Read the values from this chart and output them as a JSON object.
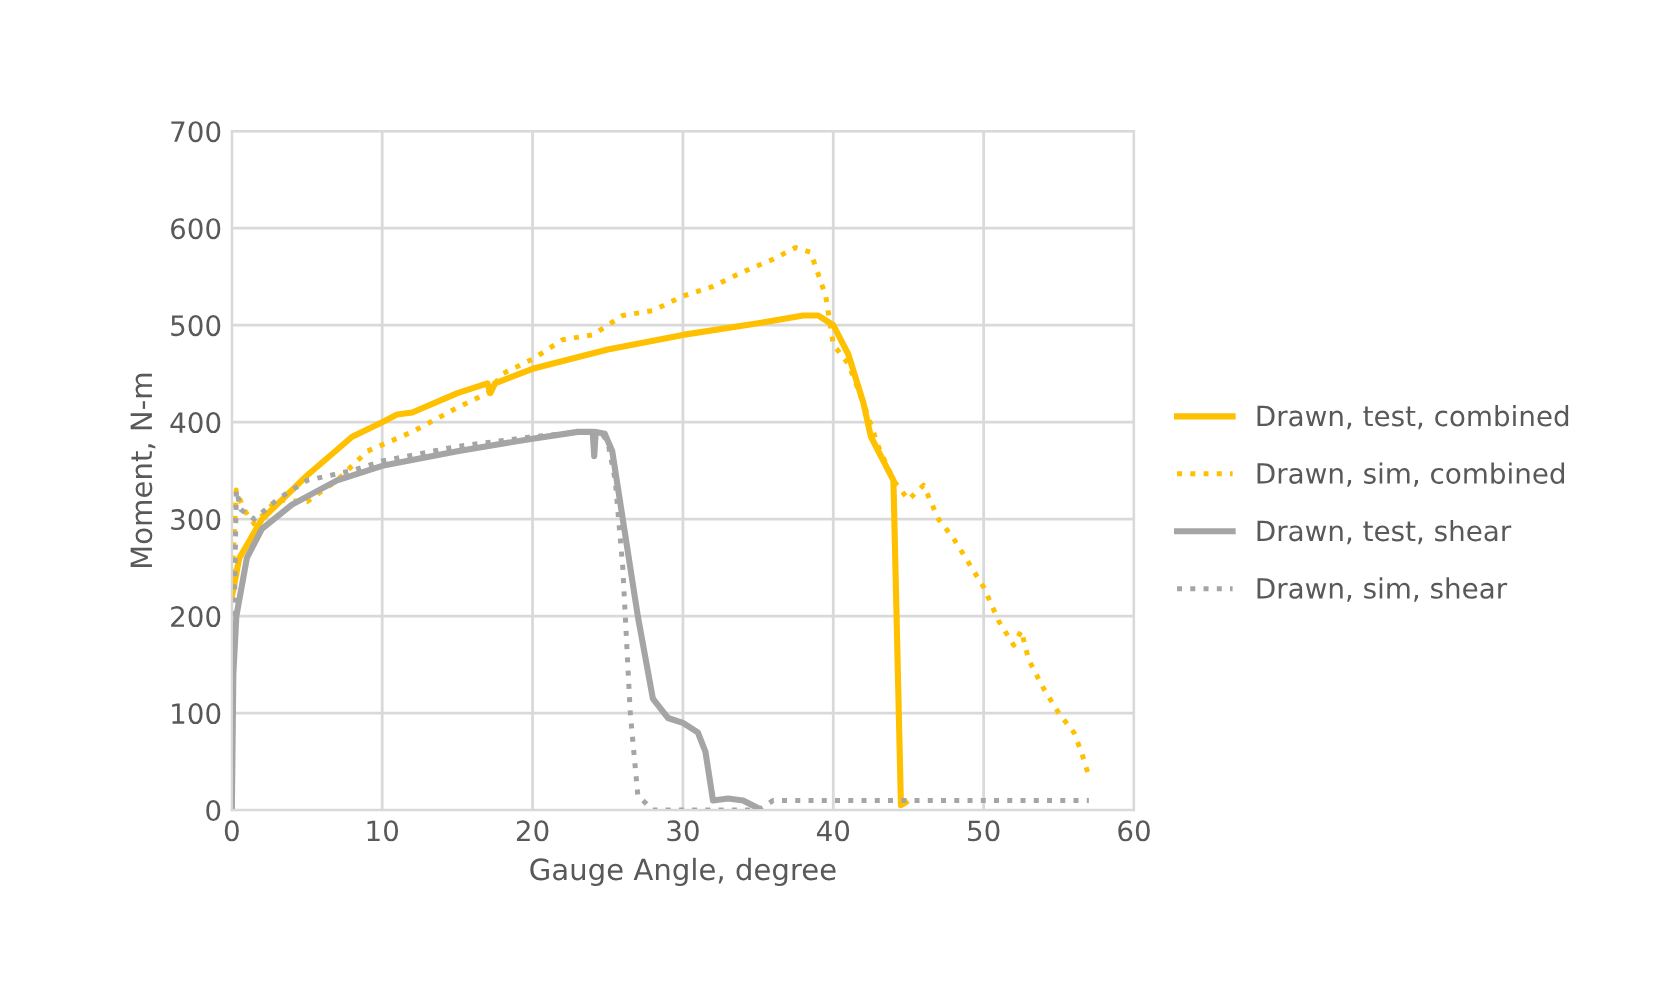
{
  "chart_data": {
    "type": "line",
    "xlabel": "Gauge Angle, degree",
    "ylabel": "Moment, N-m",
    "xlim": [
      0,
      60
    ],
    "xticks": [
      0,
      10,
      20,
      30,
      40,
      50,
      60
    ],
    "ylim": [
      0,
      700
    ],
    "yticks": [
      0,
      100,
      200,
      300,
      400,
      500,
      600,
      700
    ],
    "grid": true,
    "legend": "right",
    "marker": "none",
    "series": [
      {
        "name": "Drawn, test, combined",
        "color": "#ffc000",
        "line_style": "solid",
        "x": [
          0,
          0.5,
          2,
          5,
          8,
          10,
          11,
          12,
          15,
          17,
          17.2,
          17.5,
          20,
          25,
          30,
          35,
          38,
          39,
          40,
          41,
          42,
          42.5,
          43,
          44,
          44.5,
          44.8
        ],
        "values": [
          220,
          260,
          300,
          345,
          385,
          400,
          408,
          410,
          430,
          440,
          430,
          440,
          455,
          475,
          490,
          502,
          510,
          510,
          500,
          470,
          420,
          385,
          370,
          340,
          5,
          8
        ]
      },
      {
        "name": "Drawn, sim, combined",
        "color": "#ffc000",
        "line_style": "dotted",
        "x": [
          0,
          0.3,
          0.8,
          1.5,
          3,
          5,
          7,
          9,
          12,
          15,
          17,
          18,
          20,
          22,
          24,
          26,
          28,
          30,
          32,
          34,
          36,
          37.5,
          38.5,
          39.5,
          40,
          41,
          42,
          43,
          44,
          45,
          46,
          47,
          48,
          49,
          50,
          51,
          52,
          52.5,
          53,
          54,
          55,
          56,
          56.5,
          57
        ],
        "values": [
          230,
          330,
          310,
          295,
          320,
          318,
          340,
          370,
          390,
          415,
          430,
          450,
          465,
          485,
          490,
          510,
          515,
          530,
          540,
          555,
          568,
          580,
          575,
          530,
          480,
          460,
          420,
          375,
          340,
          320,
          335,
          300,
          280,
          255,
          230,
          195,
          170,
          185,
          155,
          125,
          100,
          80,
          60,
          35
        ]
      },
      {
        "name": "Drawn, test, shear",
        "color": "#a5a5a5",
        "line_style": "solid",
        "x": [
          0,
          0.1,
          0.3,
          1,
          2,
          4,
          7,
          10,
          15,
          20,
          23,
          24,
          24.1,
          24.2,
          24.8,
          25.3,
          26,
          27,
          28,
          29,
          30,
          31,
          31.5,
          32,
          33,
          34,
          35
        ],
        "values": [
          0,
          140,
          200,
          260,
          290,
          315,
          340,
          355,
          370,
          383,
          390,
          390,
          365,
          390,
          388,
          370,
          300,
          200,
          115,
          95,
          90,
          80,
          60,
          10,
          12,
          10,
          2
        ]
      },
      {
        "name": "Drawn, sim, shear",
        "color": "#a5a5a5",
        "line_style": "dotted",
        "x": [
          0,
          0.3,
          0.6,
          1.5,
          3,
          5,
          8,
          10,
          15,
          20,
          23.5,
          24.5,
          25,
          25.5,
          26,
          26.5,
          27,
          28,
          35,
          36,
          57
        ],
        "values": [
          50,
          330,
          310,
          300,
          320,
          340,
          350,
          360,
          375,
          385,
          390,
          390,
          380,
          340,
          250,
          100,
          15,
          0,
          0,
          10,
          10
        ]
      }
    ]
  }
}
